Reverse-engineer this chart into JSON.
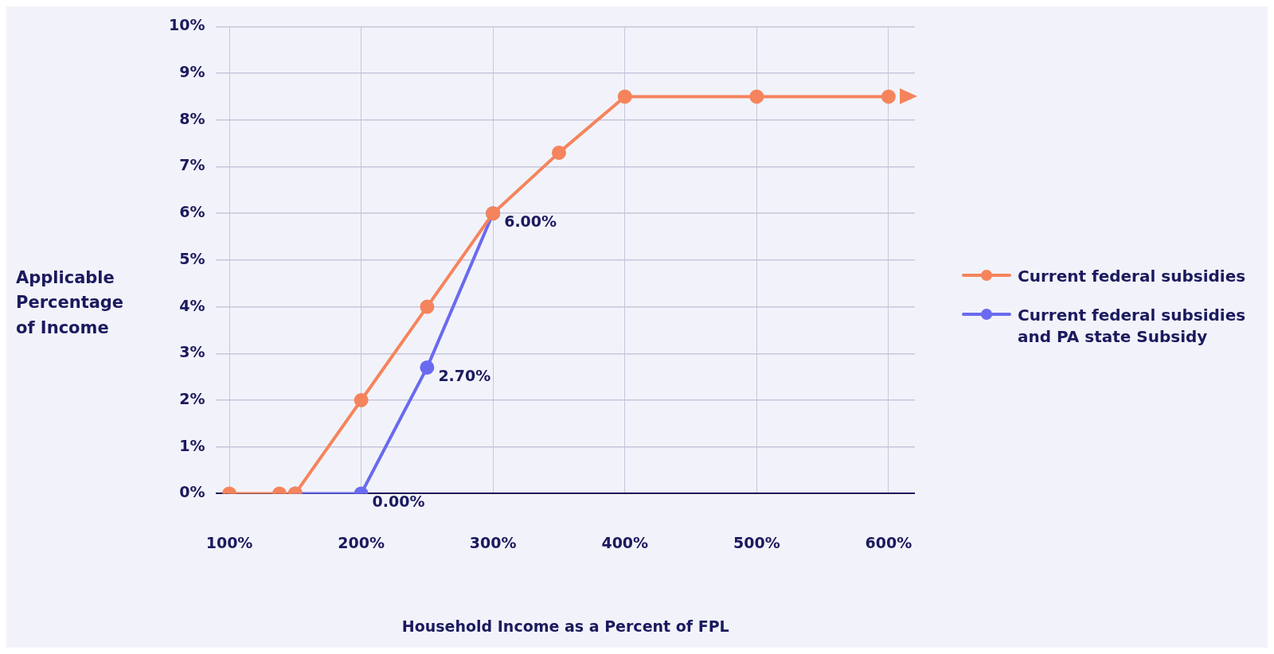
{
  "chart_data": {
    "type": "line",
    "xlabel": "Household Income as a Percent of FPL",
    "ylabel": "Applicable Percentage of Income",
    "xlim": [
      90,
      620
    ],
    "xticks": [
      {
        "value": 100,
        "label": "100%"
      },
      {
        "value": 200,
        "label": "200%"
      },
      {
        "value": 300,
        "label": "300%"
      },
      {
        "value": 400,
        "label": "400%"
      },
      {
        "value": 500,
        "label": "500%"
      },
      {
        "value": 600,
        "label": "600%"
      }
    ],
    "ylim": [
      0,
      10
    ],
    "yticks": [
      {
        "value": 0,
        "label": "0%"
      },
      {
        "value": 1,
        "label": "1%"
      },
      {
        "value": 2,
        "label": "2%"
      },
      {
        "value": 3,
        "label": "3%"
      },
      {
        "value": 4,
        "label": "4%"
      },
      {
        "value": 5,
        "label": "5%"
      },
      {
        "value": 6,
        "label": "6%"
      },
      {
        "value": 7,
        "label": "7%"
      },
      {
        "value": 8,
        "label": "8%"
      },
      {
        "value": 9,
        "label": "9%"
      },
      {
        "value": 10,
        "label": "10%"
      }
    ],
    "grid": true,
    "legend": "right",
    "marker": "circle",
    "line_style": "solid",
    "series": [
      {
        "name": "Current federal subsidies",
        "color": "#f5845c",
        "x": [
          100,
          138,
          150,
          200,
          250,
          300,
          350,
          400,
          500,
          600
        ],
        "values": [
          0,
          0,
          0,
          2,
          4,
          6,
          7.3,
          8.5,
          8.5,
          8.5
        ]
      },
      {
        "name": "Current federal subsidies and PA state Subsidy",
        "color": "#6a6af0",
        "x": [
          150,
          200,
          250,
          300
        ],
        "values": [
          0,
          0,
          2.7,
          6
        ],
        "value_labels": [
          null,
          "0.00%",
          "2.70%",
          "6.00%"
        ]
      }
    ]
  }
}
